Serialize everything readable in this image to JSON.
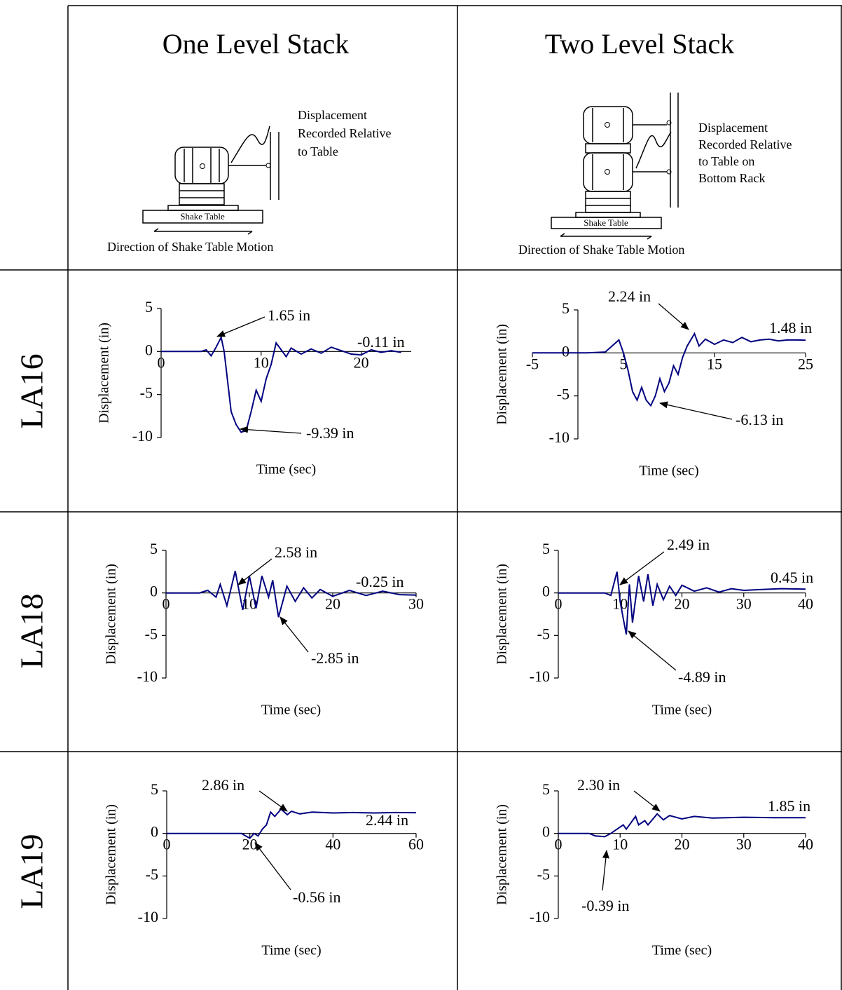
{
  "table": {
    "columns": [
      "One Level Stack",
      "Two Level Stack"
    ],
    "rows": [
      "LA16",
      "LA18",
      "LA19"
    ]
  },
  "diagrams": [
    {
      "label": [
        "Displacement",
        "Recorded Relative",
        "to Table"
      ],
      "base": "Shake Table",
      "caption": "Direction of Shake Table Motion"
    },
    {
      "label": [
        "Displacement",
        "Recorded Relative",
        "to Table on",
        "Bottom Rack"
      ],
      "base": "Shake Table",
      "caption": "Direction of Shake Table Motion"
    }
  ],
  "chart_data": [
    {
      "type": "line",
      "x_label": "Time (sec)",
      "y_label": "Displacement (in)",
      "xlim": [
        0,
        25
      ],
      "ylim": [
        -10,
        5
      ],
      "xticks": [
        0,
        10,
        20
      ],
      "yticks": [
        -10,
        -5,
        0,
        5
      ],
      "series": [
        {
          "color": "#000080",
          "x": [
            0,
            2,
            4,
            4.5,
            5,
            5.5,
            6,
            6.3,
            6.7,
            7,
            7.5,
            8,
            8.5,
            9,
            9.5,
            10,
            10.5,
            11,
            11.5,
            12,
            12.5,
            13,
            14,
            15,
            16,
            17,
            18,
            19,
            20,
            21,
            22,
            23,
            24
          ],
          "values": [
            0,
            0,
            0,
            0.2,
            -0.5,
            0.5,
            1.65,
            0,
            -4,
            -7,
            -8.5,
            -9.39,
            -9.2,
            -7,
            -4.5,
            -5.8,
            -3.2,
            -1.5,
            1.0,
            0.2,
            -0.6,
            0.4,
            -0.3,
            0.3,
            -0.2,
            0.5,
            0.1,
            -0.3,
            -0.4,
            0.2,
            -0.1,
            0.1,
            -0.11
          ]
        }
      ],
      "annotations": [
        "1.65 in",
        "-0.11 in",
        "-9.39 in"
      ]
    },
    {
      "type": "line",
      "x_label": "Time (sec)",
      "y_label": "Displacement (in)",
      "xlim": [
        -5,
        25
      ],
      "ylim": [
        -10,
        5
      ],
      "xticks": [
        -5,
        5,
        15,
        25
      ],
      "yticks": [
        -10,
        -5,
        0,
        5
      ],
      "series": [
        {
          "color": "#000080",
          "x": [
            -5,
            -2,
            1,
            3,
            4.5,
            5,
            5.5,
            6,
            6.5,
            7,
            7.5,
            8,
            8.5,
            9,
            9.5,
            10,
            10.5,
            11,
            11.5,
            12,
            12.8,
            13.3,
            14,
            15,
            16,
            17,
            18,
            19,
            20,
            21,
            22,
            23,
            24,
            25
          ],
          "values": [
            0,
            0,
            0,
            0.1,
            1.5,
            0,
            -2,
            -4.5,
            -5.5,
            -4,
            -5.5,
            -6.13,
            -5,
            -3,
            -4.5,
            -3.5,
            -1.5,
            -2.5,
            -0.5,
            0.8,
            2.24,
            0.8,
            1.6,
            1.0,
            1.5,
            1.2,
            1.8,
            1.3,
            1.5,
            1.6,
            1.4,
            1.5,
            1.5,
            1.48
          ]
        }
      ],
      "annotations": [
        "2.24 in",
        "1.48 in",
        "-6.13 in"
      ]
    },
    {
      "type": "line",
      "x_label": "Time (sec)",
      "y_label": "Displacement (in)",
      "xlim": [
        0,
        30
      ],
      "ylim": [
        -10,
        5
      ],
      "xticks": [
        0,
        10,
        20,
        30
      ],
      "yticks": [
        -10,
        -5,
        0,
        5
      ],
      "series": [
        {
          "color": "#000080",
          "x": [
            0,
            4,
            5,
            6,
            6.5,
            7.3,
            8.3,
            9.2,
            10,
            10.8,
            11.5,
            12.3,
            12.8,
            13.5,
            14.5,
            15.5,
            16.5,
            17.5,
            18.5,
            20,
            22,
            24,
            26,
            28,
            30
          ],
          "values": [
            0,
            0,
            0.3,
            -0.5,
            1.0,
            -1.5,
            2.58,
            -2.0,
            2.0,
            -1.8,
            2.0,
            -0.5,
            1.5,
            -2.85,
            0.8,
            -1.0,
            0.6,
            -0.6,
            0.4,
            -0.4,
            0.3,
            -0.3,
            0.2,
            -0.2,
            -0.25
          ]
        }
      ],
      "annotations": [
        "2.58 in",
        "-0.25 in",
        "-2.85 in"
      ]
    },
    {
      "type": "line",
      "x_label": "Time (sec)",
      "y_label": "Displacement (in)",
      "xlim": [
        0,
        40
      ],
      "ylim": [
        -10,
        5
      ],
      "xticks": [
        0,
        10,
        20,
        30,
        40
      ],
      "yticks": [
        -10,
        -5,
        0,
        5
      ],
      "series": [
        {
          "color": "#000080",
          "x": [
            0,
            6,
            7.5,
            8.5,
            9.5,
            10,
            10.5,
            11,
            11.5,
            12,
            13,
            13.8,
            14.5,
            15.3,
            16,
            17,
            18,
            19,
            20,
            22,
            24,
            26,
            28,
            30,
            33,
            36,
            40
          ],
          "values": [
            0,
            0,
            0,
            -0.3,
            2.49,
            -1.0,
            -3.0,
            -4.89,
            1.0,
            -3.5,
            2.0,
            -1.0,
            2.2,
            -1.5,
            1.0,
            -0.8,
            0.8,
            -0.3,
            0.9,
            0.2,
            0.6,
            0.1,
            0.5,
            0.3,
            0.4,
            0.5,
            0.45
          ]
        }
      ],
      "annotations": [
        "2.49 in",
        "0.45 in",
        "-4.89 in"
      ]
    },
    {
      "type": "line",
      "x_label": "Time (sec)",
      "y_label": "Displacement (in)",
      "xlim": [
        0,
        60
      ],
      "ylim": [
        -10,
        5
      ],
      "xticks": [
        0,
        20,
        40,
        60
      ],
      "yticks": [
        -10,
        -5,
        0,
        5
      ],
      "series": [
        {
          "color": "#000080",
          "x": [
            0,
            10,
            18,
            19,
            20,
            21,
            22,
            23,
            24,
            25,
            26,
            27.5,
            29,
            30,
            32,
            35,
            40,
            45,
            50,
            55,
            60
          ],
          "values": [
            0,
            0,
            0,
            -0.3,
            -0.56,
            0,
            -0.3,
            0.5,
            1.0,
            2.5,
            2.0,
            2.86,
            2.2,
            2.6,
            2.3,
            2.5,
            2.4,
            2.45,
            2.4,
            2.45,
            2.44
          ]
        }
      ],
      "annotations": [
        "2.86 in",
        "2.44 in",
        "-0.56 in"
      ]
    },
    {
      "type": "line",
      "x_label": "Time (sec)",
      "y_label": "Displacement (in)",
      "xlim": [
        0,
        40
      ],
      "ylim": [
        -10,
        5
      ],
      "xticks": [
        0,
        10,
        20,
        30,
        40
      ],
      "yticks": [
        -10,
        -5,
        0,
        5
      ],
      "series": [
        {
          "color": "#000080",
          "x": [
            0,
            5,
            6,
            7.5,
            8.5,
            9.5,
            10.5,
            11,
            12.5,
            13,
            14,
            14.5,
            16,
            17,
            18,
            20,
            22,
            25,
            30,
            35,
            40
          ],
          "values": [
            0,
            0,
            -0.3,
            -0.39,
            0,
            0.5,
            1.0,
            0.5,
            2.0,
            1.0,
            1.5,
            1.0,
            2.3,
            1.6,
            2.1,
            1.7,
            2.0,
            1.8,
            1.9,
            1.85,
            1.85
          ]
        }
      ],
      "annotations": [
        "2.30 in",
        "1.85 in",
        "-0.39 in"
      ]
    }
  ]
}
